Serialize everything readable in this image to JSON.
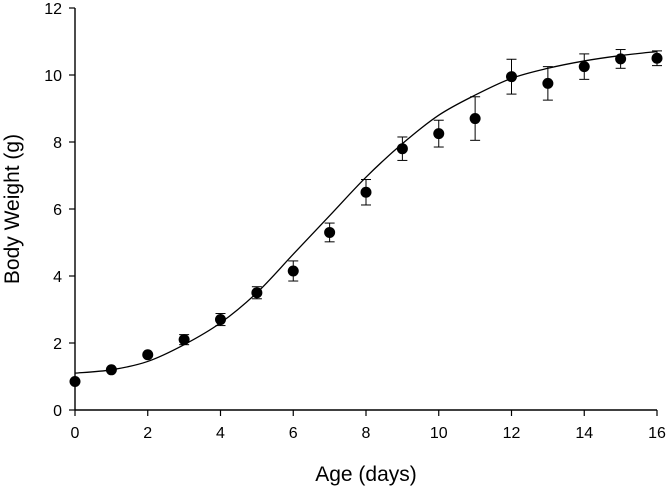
{
  "chart_data": {
    "type": "scatter",
    "xlabel": "Age (days)",
    "ylabel": "Body Weight (g)",
    "xlim": [
      0,
      16
    ],
    "ylim": [
      0,
      12
    ],
    "xticks": [
      0,
      2,
      4,
      6,
      8,
      10,
      12,
      14,
      16
    ],
    "yticks": [
      0,
      2,
      4,
      6,
      8,
      10,
      12
    ],
    "grid": false,
    "legend": "none",
    "marker_color": "#000000",
    "series": [
      {
        "x": [
          0,
          1,
          2,
          3,
          4,
          5,
          6,
          7,
          8,
          9,
          10,
          11,
          12,
          13,
          14,
          15,
          16
        ],
        "y": [
          0.85,
          1.2,
          1.65,
          2.1,
          2.7,
          3.5,
          4.15,
          5.3,
          6.5,
          7.8,
          8.25,
          8.7,
          9.95,
          9.75,
          10.25,
          10.48,
          10.5
        ],
        "error": [
          0,
          0,
          0,
          0.15,
          0.18,
          0.18,
          0.3,
          0.28,
          0.38,
          0.35,
          0.4,
          0.65,
          0.52,
          0.5,
          0.38,
          0.28,
          0.22
        ]
      }
    ],
    "fit_curve": {
      "type": "sigmoid",
      "x": [
        0,
        1,
        2,
        3,
        4,
        5,
        6,
        7,
        8,
        9,
        10,
        11,
        12,
        13,
        14,
        15,
        16
      ],
      "y": [
        1.1,
        1.2,
        1.45,
        1.95,
        2.6,
        3.5,
        4.65,
        5.8,
        6.95,
        7.95,
        8.8,
        9.4,
        9.9,
        10.2,
        10.42,
        10.58,
        10.7
      ]
    }
  }
}
